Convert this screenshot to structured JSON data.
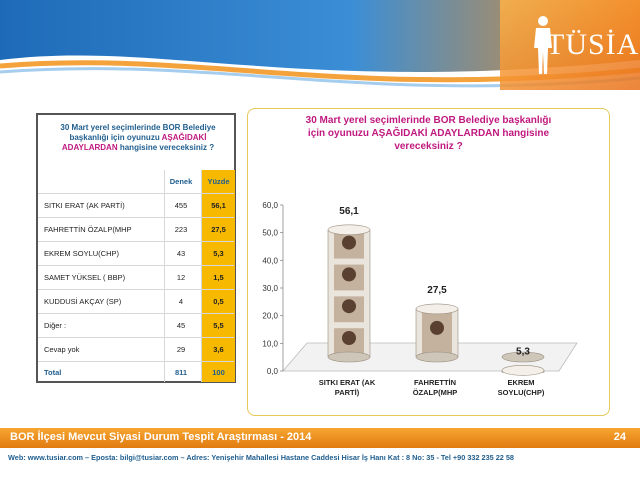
{
  "logo": {
    "text": "TÜSİAR"
  },
  "table": {
    "title_line1": "30 Mart yerel seçimlerinde BOR Belediye",
    "title_line2": "başkanlığı için oyunuzu",
    "title_em1": "AŞAĞIDAKİ",
    "title_em2": "ADAYLARDAN",
    "title_line3": "hangisine vereceksiniz ?",
    "header_denek": "Denek",
    "header_yuzde": "Yüzde",
    "rows": [
      {
        "name": "SITKI ERAT (AK PARTİ)",
        "denek": "455",
        "yuzde": "56,1"
      },
      {
        "name": "FAHRETTİN ÖZALP(MHP",
        "denek": "223",
        "yuzde": "27,5"
      },
      {
        "name": "EKREM SOYLU(CHP)",
        "denek": "43",
        "yuzde": "5,3"
      },
      {
        "name": "SAMET YÜKSEL ( BBP)",
        "denek": "12",
        "yuzde": "1,5"
      },
      {
        "name": "KUDDUSİ AKÇAY (SP)",
        "denek": "4",
        "yuzde": "0,5"
      },
      {
        "name": "Diğer :",
        "denek": "45",
        "yuzde": "5,5"
      },
      {
        "name": "Cevap yok",
        "denek": "29",
        "yuzde": "3,6"
      }
    ],
    "total": {
      "name": "Total",
      "denek": "811",
      "yuzde": "100"
    }
  },
  "chart_data": {
    "type": "bar",
    "title_plain1": "30 Mart yerel seçimlerinde BOR Belediye başkanlığı",
    "title_plain2": "için oyunuzu",
    "title_em": "AŞAĞIDAKİ ADAYLARDAN",
    "title_plain3": "hangisine",
    "title_plain4": "vereceksiniz ?",
    "categories": [
      "SITKI ERAT (AK PARTİ)",
      "FAHRETTİN ÖZALP(MHP",
      "EKREM SOYLU(CHP)"
    ],
    "category_lines": [
      [
        "SITKI ERAT (AK",
        "PARTİ)"
      ],
      [
        "FAHRETTİN",
        "ÖZALP(MHP"
      ],
      [
        "EKREM",
        "SOYLU(CHP)"
      ]
    ],
    "values": [
      56.1,
      27.5,
      5.3
    ],
    "value_labels": [
      "56,1",
      "27,5",
      "5,3"
    ],
    "ylim": [
      0,
      60
    ],
    "yticks": [
      "0,0",
      "10,0",
      "20,0",
      "30,0",
      "40,0",
      "50,0",
      "60,0"
    ],
    "grid": false
  },
  "footer": {
    "title": "BOR İlçesi Mevcut Siyasi Durum Tespit Araştırması - 2014",
    "page": "24",
    "contact": "Web: www.tusiar.com – Eposta: bilgi@tusiar.com – Adres: Yenişehir Mahallesi Hastane Caddesi Hisar İş Hanı Kat : 8 No: 35 - Tel +90 332 235 22 58"
  },
  "colors": {
    "accent": "#c0197f",
    "navy": "#1f5e8f",
    "highlight": "#f6b900",
    "footer": "#f08c1e"
  }
}
